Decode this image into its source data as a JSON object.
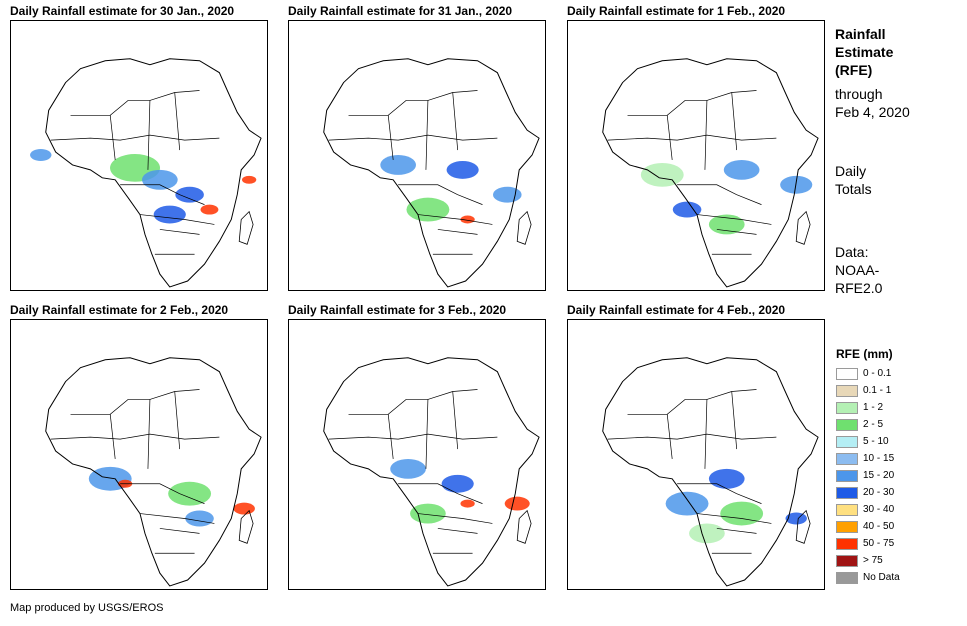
{
  "panels": [
    {
      "title": "Daily Rainfall estimate for 30 Jan., 2020"
    },
    {
      "title": "Daily Rainfall estimate for 31 Jan., 2020"
    },
    {
      "title": "Daily Rainfall estimate for 1 Feb., 2020"
    },
    {
      "title": "Daily Rainfall estimate for 2 Feb., 2020"
    },
    {
      "title": "Daily Rainfall estimate for 3 Feb., 2020"
    },
    {
      "title": "Daily Rainfall estimate for 4 Feb., 2020"
    }
  ],
  "info": {
    "title_line1": "Rainfall",
    "title_line2": "Estimate",
    "title_line3": "(RFE)",
    "through": "through",
    "date": "Feb 4, 2020",
    "daily": "Daily",
    "totals": "Totals",
    "data_label": "Data:",
    "data_source1": "NOAA-",
    "data_source2": "RFE2.0"
  },
  "legend": {
    "title": "RFE (mm)",
    "items": [
      {
        "label": "0 - 0.1",
        "color": "#ffffff"
      },
      {
        "label": "0.1 - 1",
        "color": "#e8d8b8"
      },
      {
        "label": "1 - 2",
        "color": "#b4f0b4"
      },
      {
        "label": "2 - 5",
        "color": "#6fe06f"
      },
      {
        "label": "5 - 10",
        "color": "#b4eef4"
      },
      {
        "label": "10 - 15",
        "color": "#8cbcf0"
      },
      {
        "label": "15 - 20",
        "color": "#4c96ea"
      },
      {
        "label": "20 - 30",
        "color": "#1e5ae6"
      },
      {
        "label": "30 - 40",
        "color": "#ffe080"
      },
      {
        "label": "40 - 50",
        "color": "#ffa000"
      },
      {
        "label": "50 - 75",
        "color": "#ff3200"
      },
      {
        "label": "> 75",
        "color": "#a01414"
      },
      {
        "label": "No Data",
        "color": "#999999"
      }
    ]
  },
  "footer": "Map produced by USGS/EROS"
}
